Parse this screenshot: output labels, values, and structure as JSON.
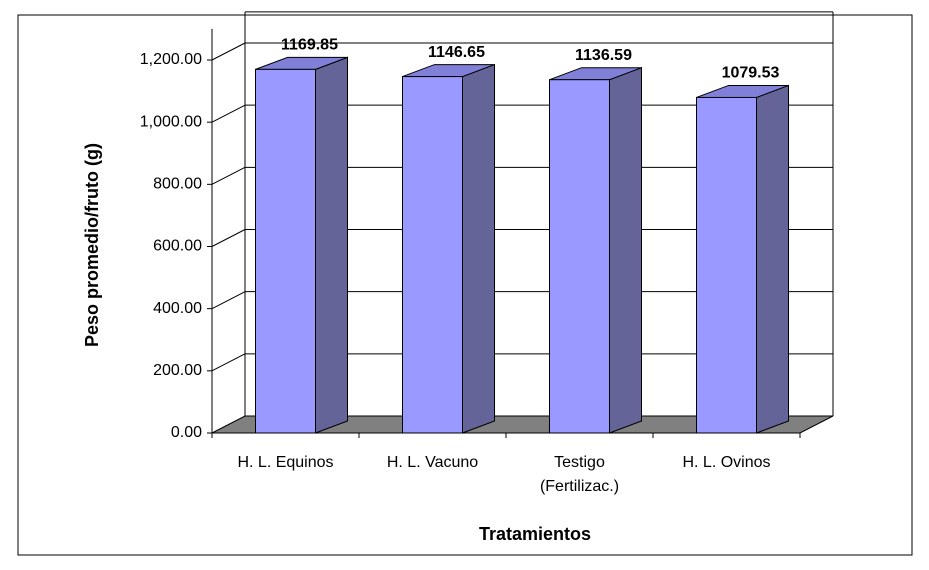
{
  "chart_data": {
    "type": "bar3d",
    "categories": [
      "H. L. Equinos",
      "H. L. Vacuno",
      "Testigo (Fertilizac.)",
      "H. L. Ovinos"
    ],
    "values": [
      1169.85,
      1146.65,
      1136.59,
      1079.53
    ],
    "color": "#9999ff",
    "xlabel": "Tratamientos",
    "ylabel": "Peso promedio/fruto (g)",
    "ylim": [
      0,
      1300
    ],
    "yticks": [
      {
        "value": 0,
        "label": "0.00"
      },
      {
        "value": 200,
        "label": "200.00"
      },
      {
        "value": 400,
        "label": "400.00"
      },
      {
        "value": 600,
        "label": "600.00"
      },
      {
        "value": 800,
        "label": "800.00"
      },
      {
        "value": 1000,
        "label": "1,000.00"
      },
      {
        "value": 1200,
        "label": "1,200.00"
      }
    ],
    "grid": true
  }
}
